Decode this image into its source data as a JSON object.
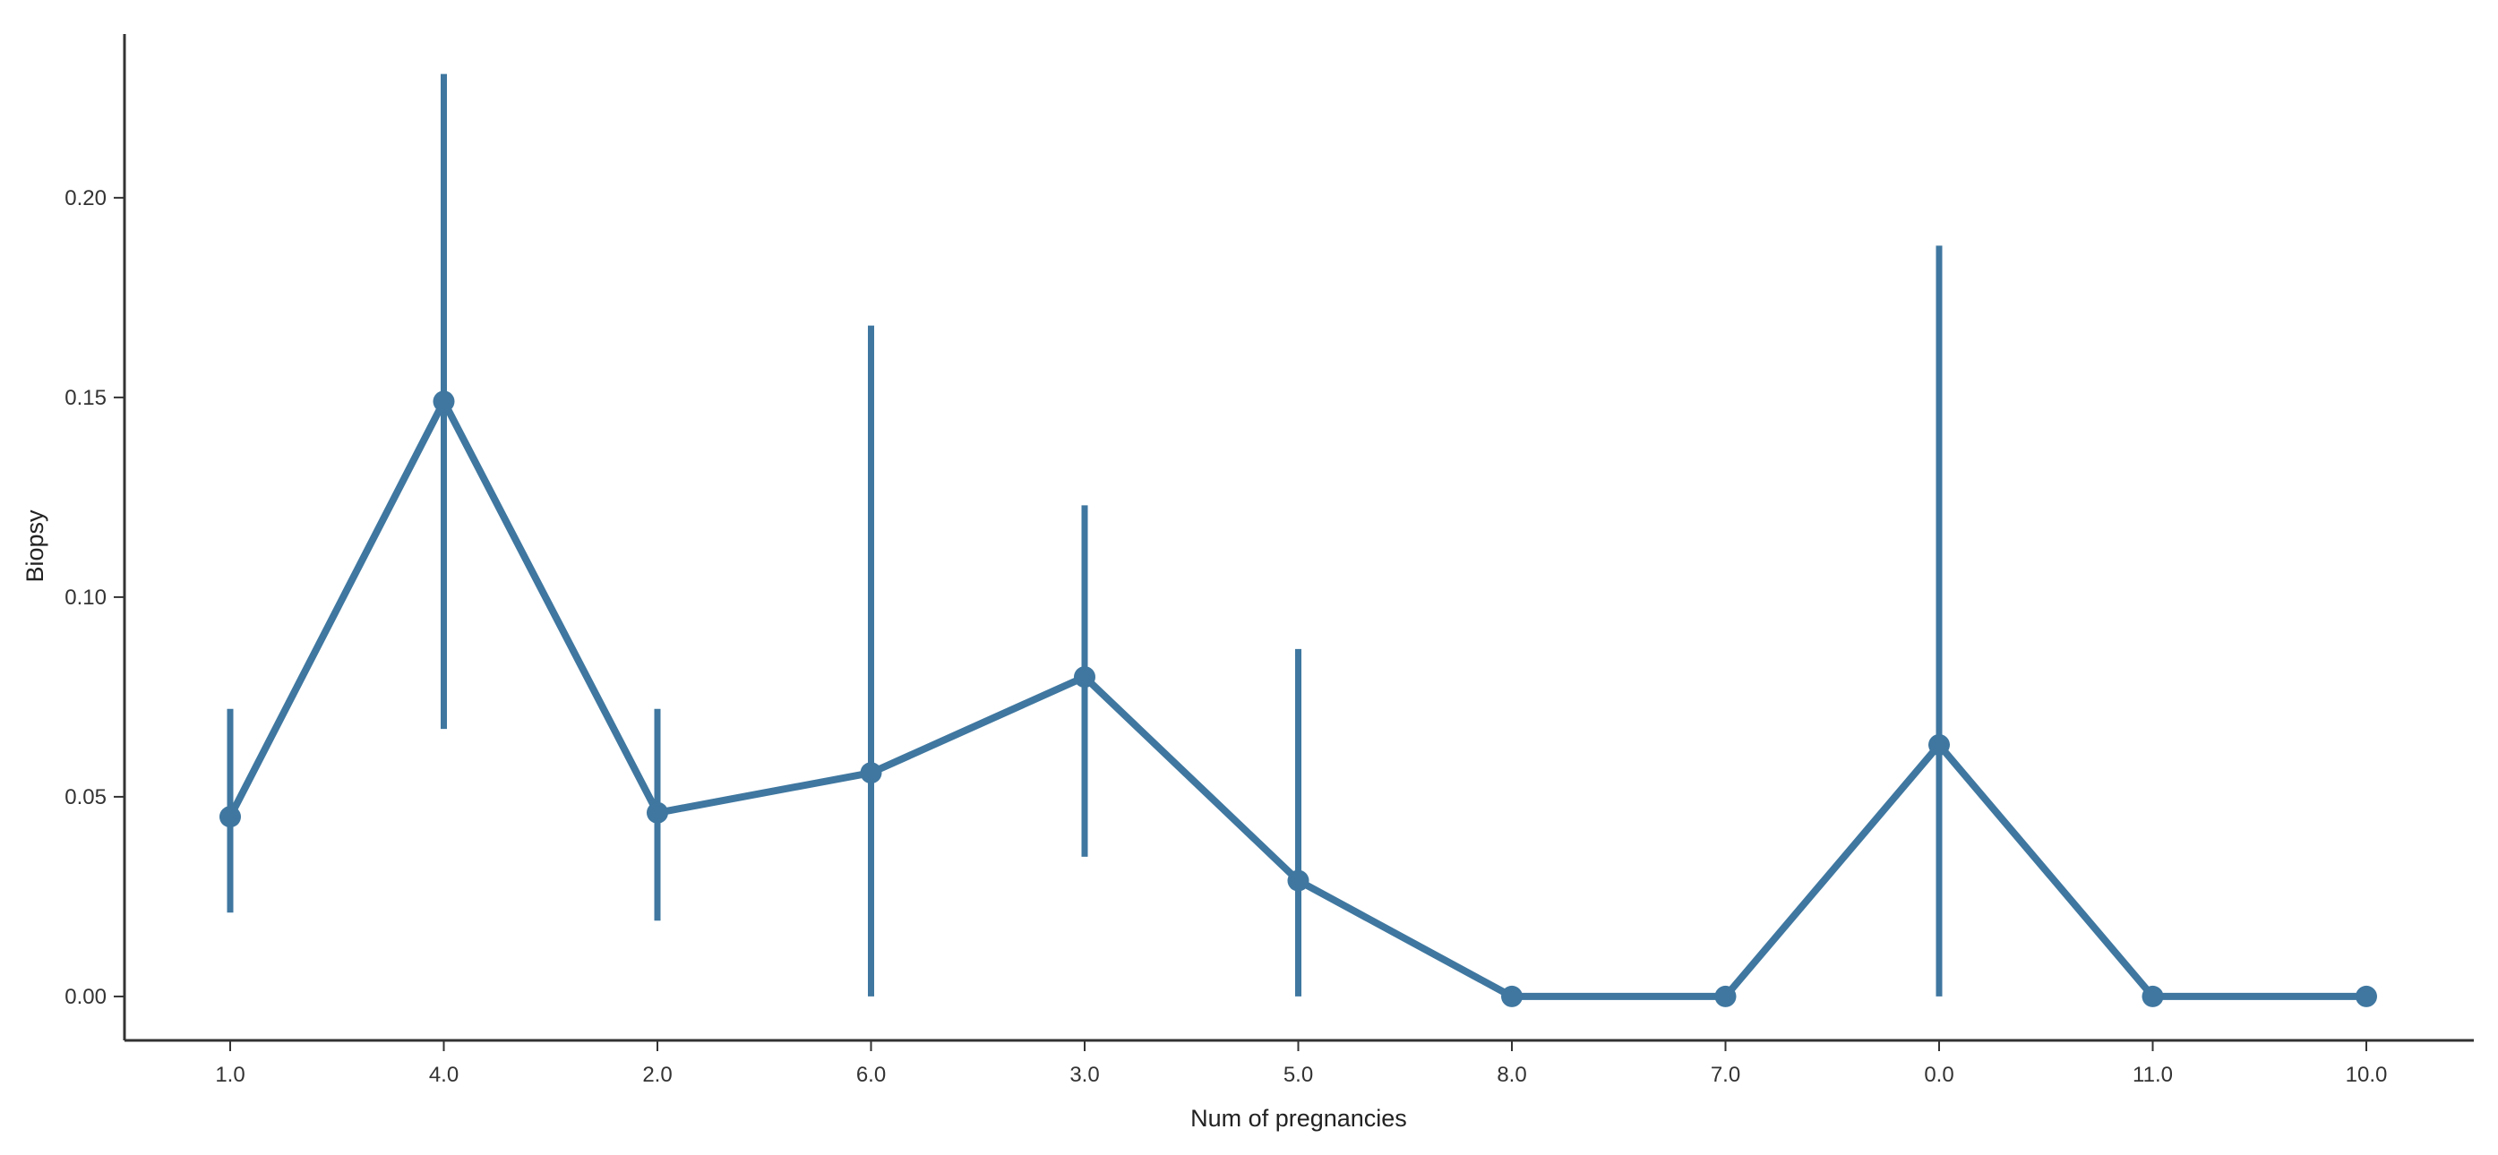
{
  "chart_data": {
    "type": "line",
    "title": "",
    "xlabel": "Num of pregnancies",
    "ylabel": "Biopsy",
    "categories": [
      "1.0",
      "4.0",
      "2.0",
      "6.0",
      "3.0",
      "5.0",
      "8.0",
      "7.0",
      "0.0",
      "11.0",
      "10.0"
    ],
    "series": [
      {
        "values": [
          0.045,
          0.149,
          0.046,
          0.056,
          0.08,
          0.029,
          0.0,
          0.0,
          0.063,
          0.0,
          0.0
        ],
        "err_low": [
          0.021,
          0.067,
          0.019,
          0.0,
          0.035,
          0.0,
          0.0,
          0.0,
          0.0,
          0.0,
          0.0
        ],
        "err_high": [
          0.072,
          0.231,
          0.072,
          0.168,
          0.123,
          0.087,
          0.0,
          0.0,
          0.188,
          0.0,
          0.0
        ]
      }
    ],
    "yticks": [
      "0.00",
      "0.05",
      "0.10",
      "0.15",
      "0.20"
    ],
    "ylim": [
      -0.011,
      0.241
    ],
    "grid": false,
    "legend": "none",
    "color": "#3f77a0"
  }
}
